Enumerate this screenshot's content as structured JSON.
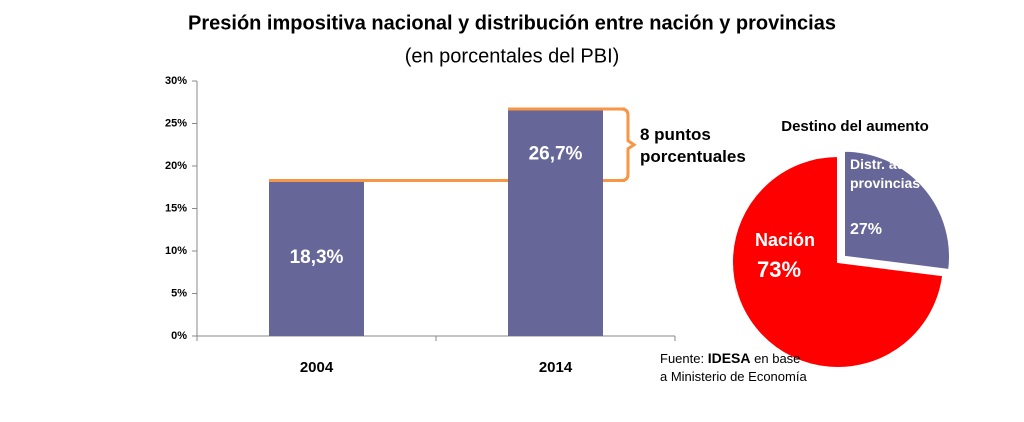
{
  "chart_data": [
    {
      "type": "bar",
      "title": "Presión impositiva nacional y distribución entre nación y provincias",
      "subtitle": "(en porcentales del PBI)",
      "categories": [
        "2004",
        "2014"
      ],
      "values": [
        18.3,
        26.7
      ],
      "value_labels": [
        "18,3%",
        "26,7%"
      ],
      "color": "#666699",
      "ylim": [
        0,
        30
      ],
      "yticks": [
        {
          "value": 0,
          "label": "0%"
        },
        {
          "value": 5,
          "label": "5%"
        },
        {
          "value": 10,
          "label": "10%"
        },
        {
          "value": 15,
          "label": "15%"
        },
        {
          "value": 20,
          "label": "20%"
        },
        {
          "value": 25,
          "label": "25%"
        },
        {
          "value": 30,
          "label": "30%"
        }
      ],
      "annotation": "8 puntos porcentuales",
      "annotation_color": "#f79646"
    },
    {
      "type": "pie",
      "title": "Destino del aumento",
      "categories": [
        "Nación",
        "Distr. autom. provincias"
      ],
      "values": [
        73,
        27
      ],
      "value_labels": [
        "73%",
        "27%"
      ],
      "colors": [
        "#ff0000",
        "#666699"
      ]
    }
  ],
  "source": {
    "prefix": "Fuente:",
    "name": "IDESA",
    "suffix": "en base a Ministerio de Economía"
  }
}
